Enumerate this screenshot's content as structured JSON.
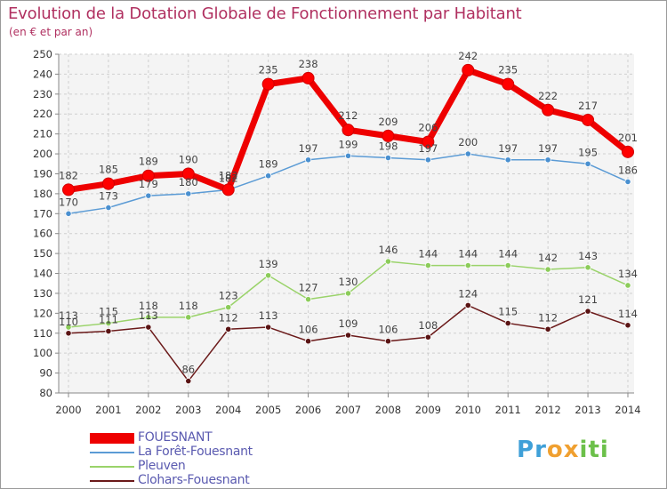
{
  "title": "Evolution de la Dotation Globale de Fonctionnement par Habitant",
  "subtitle": "(en € et par an)",
  "logo": {
    "letters": [
      "P",
      "r",
      "o",
      "x",
      "i",
      "t",
      "i"
    ],
    "colors": [
      "#3fa0d8",
      "#3fa0d8",
      "#f0a030",
      "#f0a030",
      "#6cc04a",
      "#6cc04a",
      "#6cc04a"
    ]
  },
  "chart_data": {
    "type": "line",
    "title": "Evolution de la Dotation Globale de Fonctionnement par Habitant",
    "subtitle": "(en € et par an)",
    "xlabel": "",
    "ylabel": "",
    "ylim": [
      80,
      250
    ],
    "yticks": [
      80,
      90,
      100,
      110,
      120,
      130,
      140,
      150,
      160,
      170,
      180,
      190,
      200,
      210,
      220,
      230,
      240,
      250
    ],
    "categories": [
      "2000",
      "2001",
      "2002",
      "2003",
      "2004",
      "2005",
      "2006",
      "2007",
      "2008",
      "2009",
      "2010",
      "2011",
      "2012",
      "2013",
      "2014"
    ],
    "grid": true,
    "legend": "bottom-left",
    "series": [
      {
        "name": "FOUESNANT",
        "color": "#ee0000",
        "marker_color": "#ff0000",
        "bold": true,
        "values": [
          182,
          185,
          189,
          190,
          182,
          235,
          238,
          212,
          209,
          206,
          242,
          235,
          222,
          217,
          201
        ]
      },
      {
        "name": "La Forêt-Fouesnant",
        "color": "#5b9bd5",
        "marker_color": "#4a90d0",
        "values": [
          170,
          173,
          179,
          180,
          182,
          189,
          197,
          199,
          198,
          197,
          200,
          197,
          197,
          195,
          186
        ]
      },
      {
        "name": "Pleuven",
        "color": "#9ad36a",
        "marker_color": "#8ccc5a",
        "values": [
          113,
          115,
          118,
          118,
          123,
          139,
          127,
          130,
          146,
          144,
          144,
          144,
          142,
          143,
          134
        ]
      },
      {
        "name": "Clohars-Fouesnant",
        "color": "#6b1a1a",
        "marker_color": "#5a1414",
        "values": [
          110,
          111,
          113,
          86,
          112,
          113,
          106,
          109,
          106,
          108,
          124,
          115,
          112,
          121,
          114
        ]
      }
    ]
  }
}
